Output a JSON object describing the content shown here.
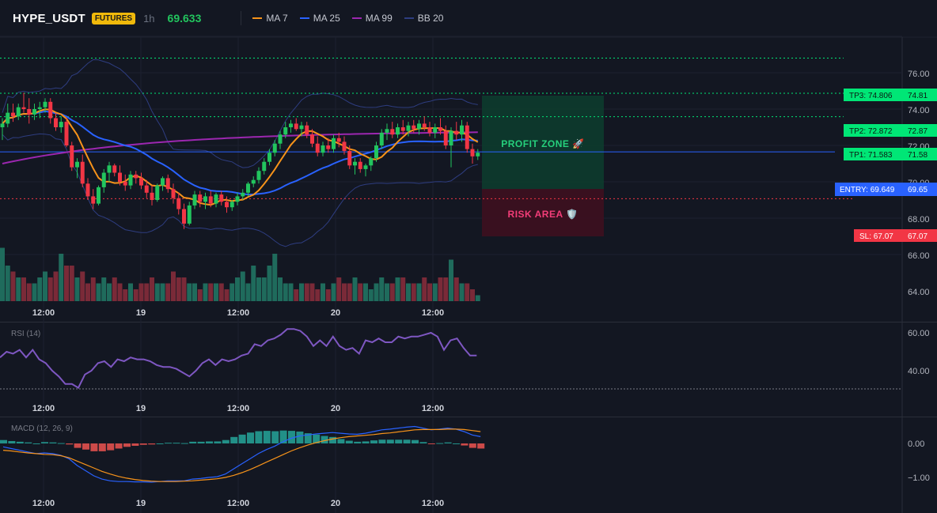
{
  "header": {
    "symbol": "HYPE_USDT",
    "badge": "FUTURES",
    "timeframe": "1h",
    "price": "69.633",
    "legend": [
      {
        "label": "MA 7",
        "color": "#f7931a"
      },
      {
        "label": "MA 25",
        "color": "#2962ff"
      },
      {
        "label": "MA 99",
        "color": "#9c27b0"
      },
      {
        "label": "BB 20",
        "color": "#2e3d80"
      }
    ]
  },
  "colors": {
    "up": "#22c55e",
    "down": "#f23645",
    "vol_up": "#1f6b5c",
    "vol_down": "#7a2a38",
    "ma7": "#f7931a",
    "ma25": "#2962ff",
    "ma99": "#9c27b0",
    "bb": "#2e3d80",
    "rsi": "#7e57c2",
    "macd": "#2962ff",
    "signal": "#f7931a",
    "tp": "#00e676",
    "entry": "#2962ff",
    "sl": "#f23645"
  },
  "price_axis": {
    "ticks": [
      "76.00",
      "74.00",
      "72.00",
      "70.00",
      "68.00",
      "66.00",
      "64.00"
    ]
  },
  "rsi_axis": {
    "ticks": [
      "60.00",
      "40.00"
    ]
  },
  "macd_axis": {
    "ticks": [
      "0.00",
      "−1.00"
    ]
  },
  "time_axis": {
    "labels": [
      "12:00",
      "19",
      "12:00",
      "20",
      "12:00"
    ]
  },
  "panes": {
    "rsi_label": "RSI (14)",
    "macd_label": "MACD (12, 26, 9)"
  },
  "zones": {
    "profit": "PROFIT ZONE 🚀",
    "risk": "RISK AREA 🛡️"
  },
  "levels": {
    "tp3": {
      "label": "TP3: 74.806",
      "axis": "74.81",
      "value": 74.806
    },
    "tp2": {
      "label": "TP2: 72.872",
      "axis": "72.87",
      "value": 72.872
    },
    "tp1": {
      "label": "TP1: 71.583",
      "axis": "71.58",
      "value": 71.583
    },
    "entry": {
      "label": "ENTRY: 69.649",
      "axis": "69.65",
      "value": 69.649
    },
    "sl": {
      "label": "SL: 67.07",
      "axis": "67.07",
      "value": 67.07
    }
  },
  "chart_data": {
    "type": "candlestick",
    "ohlc": [
      [
        71.0,
        71.5,
        70.3,
        71.2
      ],
      [
        71.2,
        72.3,
        71.0,
        71.8
      ],
      [
        71.8,
        72.3,
        71.3,
        71.6
      ],
      [
        71.6,
        72.3,
        71.4,
        72.1
      ],
      [
        72.1,
        72.9,
        71.8,
        72.0
      ],
      [
        72.0,
        72.6,
        71.2,
        71.7
      ],
      [
        71.7,
        72.3,
        71.4,
        72.0
      ],
      [
        72.0,
        72.4,
        71.5,
        72.1
      ],
      [
        72.1,
        72.6,
        71.8,
        72.4
      ],
      [
        72.4,
        72.6,
        71.2,
        71.5
      ],
      [
        71.5,
        71.8,
        70.8,
        71.0
      ],
      [
        71.0,
        71.6,
        70.7,
        71.3
      ],
      [
        71.3,
        71.5,
        69.9,
        70.0
      ],
      [
        70.0,
        70.2,
        68.6,
        68.8
      ],
      [
        68.8,
        69.3,
        68.2,
        69.1
      ],
      [
        69.1,
        69.5,
        67.7,
        67.9
      ],
      [
        67.9,
        68.2,
        67.0,
        67.2
      ],
      [
        67.2,
        67.6,
        66.5,
        66.8
      ],
      [
        66.8,
        67.8,
        66.7,
        67.7
      ],
      [
        67.7,
        68.7,
        67.4,
        68.5
      ],
      [
        68.5,
        69.1,
        68.0,
        68.9
      ],
      [
        68.9,
        69.0,
        68.3,
        68.5
      ],
      [
        68.5,
        68.9,
        67.8,
        68.0
      ],
      [
        68.0,
        68.4,
        67.5,
        67.8
      ],
      [
        67.8,
        68.6,
        67.6,
        68.4
      ],
      [
        68.4,
        68.6,
        67.9,
        68.2
      ],
      [
        68.2,
        68.5,
        67.6,
        67.8
      ],
      [
        67.8,
        68.1,
        67.1,
        67.4
      ],
      [
        67.4,
        67.8,
        66.7,
        67.0
      ],
      [
        67.0,
        67.9,
        66.9,
        67.8
      ],
      [
        67.8,
        68.3,
        67.5,
        68.2
      ],
      [
        68.2,
        68.4,
        67.4,
        67.6
      ],
      [
        67.6,
        67.9,
        66.8,
        67.1
      ],
      [
        67.1,
        67.4,
        66.2,
        66.5
      ],
      [
        66.5,
        66.8,
        65.4,
        65.7
      ],
      [
        65.7,
        66.9,
        65.6,
        66.7
      ],
      [
        66.7,
        67.5,
        66.5,
        67.3
      ],
      [
        67.3,
        67.5,
        66.6,
        66.9
      ],
      [
        66.9,
        67.4,
        66.5,
        67.2
      ],
      [
        67.2,
        67.5,
        66.6,
        66.8
      ],
      [
        66.8,
        67.4,
        66.6,
        67.3
      ],
      [
        67.3,
        67.5,
        66.7,
        66.9
      ],
      [
        66.9,
        67.2,
        66.3,
        66.6
      ],
      [
        66.6,
        67.0,
        66.4,
        66.9
      ],
      [
        66.9,
        67.4,
        66.7,
        67.2
      ],
      [
        67.2,
        67.6,
        67.0,
        67.4
      ],
      [
        67.4,
        68.0,
        67.2,
        67.9
      ],
      [
        67.9,
        68.3,
        67.7,
        68.1
      ],
      [
        68.1,
        68.8,
        67.9,
        68.6
      ],
      [
        68.6,
        69.3,
        68.4,
        69.1
      ],
      [
        69.1,
        69.8,
        68.9,
        69.6
      ],
      [
        69.6,
        70.3,
        69.4,
        70.1
      ],
      [
        70.1,
        70.8,
        69.8,
        70.6
      ],
      [
        70.6,
        71.3,
        70.4,
        71.0
      ],
      [
        71.0,
        71.4,
        70.7,
        71.2
      ],
      [
        71.2,
        71.5,
        70.8,
        70.9
      ],
      [
        70.9,
        71.3,
        70.5,
        71.1
      ],
      [
        71.1,
        71.3,
        70.4,
        70.6
      ],
      [
        70.6,
        70.9,
        69.9,
        70.1
      ],
      [
        70.1,
        70.5,
        69.4,
        69.6
      ],
      [
        69.6,
        70.2,
        69.4,
        70.0
      ],
      [
        70.0,
        70.4,
        69.6,
        69.8
      ],
      [
        69.8,
        70.6,
        69.6,
        70.4
      ],
      [
        70.4,
        70.7,
        69.9,
        70.2
      ],
      [
        70.2,
        70.5,
        69.5,
        69.7
      ],
      [
        69.7,
        70.0,
        68.7,
        68.9
      ],
      [
        68.9,
        69.3,
        68.4,
        69.1
      ],
      [
        69.1,
        69.3,
        68.5,
        68.7
      ],
      [
        68.7,
        69.0,
        68.3,
        68.9
      ],
      [
        68.9,
        69.4,
        68.6,
        69.3
      ],
      [
        69.3,
        70.2,
        69.1,
        70.0
      ],
      [
        70.0,
        70.9,
        69.8,
        70.7
      ],
      [
        70.7,
        71.2,
        70.3,
        70.9
      ],
      [
        70.9,
        71.3,
        70.4,
        70.6
      ],
      [
        70.6,
        71.2,
        70.4,
        71.0
      ],
      [
        71.0,
        71.4,
        70.6,
        70.8
      ],
      [
        70.8,
        71.3,
        70.5,
        71.1
      ],
      [
        71.1,
        71.4,
        70.7,
        70.9
      ],
      [
        70.9,
        71.4,
        70.6,
        71.2
      ],
      [
        71.2,
        71.6,
        70.8,
        71.0
      ],
      [
        71.0,
        71.3,
        70.5,
        70.7
      ],
      [
        70.7,
        71.2,
        70.4,
        71.0
      ],
      [
        71.0,
        71.5,
        70.6,
        70.8
      ],
      [
        70.8,
        71.1,
        69.8,
        70.0
      ],
      [
        70.0,
        71.0,
        68.8,
        70.8
      ],
      [
        70.8,
        71.3,
        70.3,
        70.6
      ],
      [
        70.6,
        71.4,
        70.2,
        71.1
      ],
      [
        71.1,
        71.3,
        69.6,
        69.8
      ],
      [
        69.8,
        70.1,
        69.0,
        69.4
      ],
      [
        69.4,
        69.8,
        69.2,
        69.6
      ]
    ],
    "volume": [
      9,
      6,
      5,
      4,
      4,
      3,
      3,
      4,
      5,
      4,
      5,
      8,
      6,
      6,
      4,
      5,
      3,
      4,
      3,
      4,
      3,
      4,
      3,
      2,
      3,
      2,
      3,
      3,
      4,
      3,
      3,
      3,
      5,
      4,
      4,
      3,
      3,
      2,
      3,
      3,
      3,
      3,
      2,
      3,
      4,
      5,
      3,
      6,
      4,
      4,
      6,
      8,
      4,
      3,
      3,
      2,
      3,
      3,
      3,
      2,
      3,
      2,
      3,
      4,
      3,
      3,
      4,
      3,
      3,
      2,
      3,
      4,
      3,
      3,
      4,
      4,
      3,
      3,
      3,
      4,
      3,
      3,
      4,
      4,
      7,
      4,
      3,
      3,
      2,
      1
    ],
    "rsi": [
      47,
      50,
      49,
      51,
      47,
      51,
      46,
      44,
      40,
      37,
      33,
      33,
      31,
      38,
      40,
      44,
      45,
      42,
      46,
      45,
      47,
      46,
      46,
      45,
      43,
      42,
      42,
      41,
      39,
      37,
      40,
      44,
      46,
      43,
      46,
      45,
      46,
      48,
      49,
      54,
      53,
      56,
      57,
      59,
      62,
      62,
      61,
      58,
      53,
      56,
      53,
      58,
      53,
      51,
      52,
      49,
      56,
      55,
      57,
      55,
      55,
      58,
      57,
      58,
      58,
      59,
      60,
      58,
      51,
      56,
      57,
      52,
      48,
      48
    ],
    "macd": [
      -0.1,
      -0.15,
      -0.2,
      -0.25,
      -0.3,
      -0.28,
      -0.3,
      -0.35,
      -0.45,
      -0.65,
      -0.8,
      -0.95,
      -1.05,
      -1.1,
      -1.12,
      -1.12,
      -1.13,
      -1.13,
      -1.14,
      -1.12,
      -1.1,
      -1.1,
      -1.1,
      -1.05,
      -1.03,
      -1.0,
      -0.98,
      -0.9,
      -0.75,
      -0.6,
      -0.45,
      -0.3,
      -0.18,
      -0.08,
      0.05,
      0.15,
      0.22,
      0.25,
      0.28,
      0.3,
      0.32,
      0.3,
      0.28,
      0.27,
      0.3,
      0.35,
      0.4,
      0.42,
      0.45,
      0.48,
      0.5,
      0.45,
      0.4,
      0.42,
      0.45,
      0.42,
      0.35,
      0.25,
      0.2
    ],
    "signal": [
      -0.2,
      -0.22,
      -0.25,
      -0.28,
      -0.3,
      -0.32,
      -0.33,
      -0.36,
      -0.42,
      -0.52,
      -0.62,
      -0.72,
      -0.82,
      -0.9,
      -0.97,
      -1.02,
      -1.06,
      -1.09,
      -1.11,
      -1.12,
      -1.12,
      -1.12,
      -1.11,
      -1.1,
      -1.08,
      -1.06,
      -1.04,
      -1.0,
      -0.94,
      -0.86,
      -0.77,
      -0.66,
      -0.55,
      -0.44,
      -0.33,
      -0.22,
      -0.13,
      -0.05,
      0.02,
      0.08,
      0.13,
      0.17,
      0.2,
      0.22,
      0.24,
      0.26,
      0.29,
      0.31,
      0.34,
      0.37,
      0.4,
      0.41,
      0.41,
      0.41,
      0.42,
      0.42,
      0.41,
      0.38,
      0.35
    ],
    "histogram": [
      0.1,
      0.07,
      0.05,
      0.03,
      0.0,
      0.04,
      0.03,
      0.01,
      -0.03,
      -0.13,
      -0.18,
      -0.23,
      -0.23,
      -0.2,
      -0.15,
      -0.1,
      -0.07,
      -0.04,
      -0.03,
      0.0,
      0.02,
      0.02,
      0.01,
      0.05,
      0.05,
      0.06,
      0.06,
      0.1,
      0.19,
      0.26,
      0.32,
      0.36,
      0.37,
      0.36,
      0.38,
      0.37,
      0.35,
      0.3,
      0.26,
      0.22,
      0.19,
      0.13,
      0.08,
      0.05,
      0.06,
      0.09,
      0.11,
      0.11,
      0.11,
      0.11,
      0.1,
      0.04,
      -0.01,
      0.01,
      0.03,
      0.0,
      -0.06,
      -0.13,
      -0.15
    ]
  }
}
